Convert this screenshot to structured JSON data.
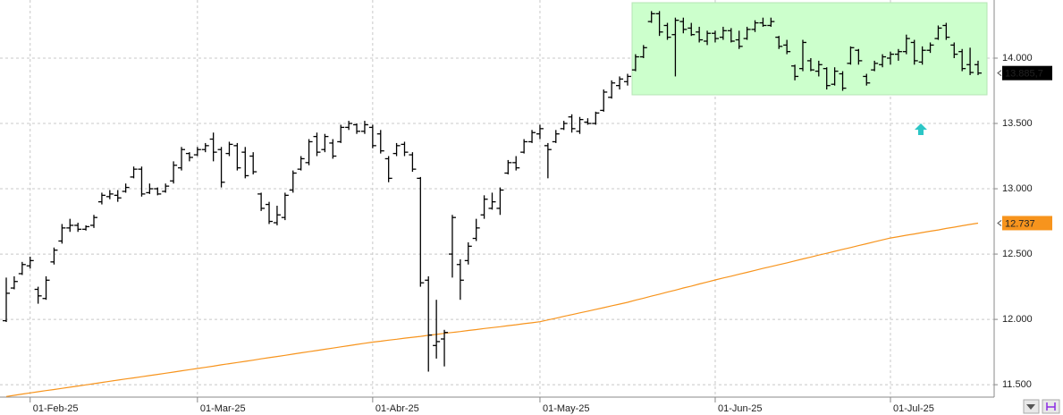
{
  "chart_data": {
    "type": "ohlc",
    "categories": [
      null,
      null,
      null,
      "01-Feb-25",
      null,
      null,
      null,
      null,
      null,
      null,
      null,
      null,
      null,
      null,
      null,
      null,
      null,
      null,
      null,
      null,
      null,
      null,
      null,
      null,
      "01-Mar-25",
      null,
      null,
      null,
      null,
      null,
      null,
      null,
      null,
      null,
      null,
      null,
      null,
      null,
      null,
      null,
      null,
      null,
      null,
      null,
      null,
      null,
      "01-Abr-25",
      null,
      null,
      null,
      null,
      null,
      null,
      null,
      null,
      null,
      null,
      null,
      null,
      null,
      null,
      null,
      null,
      null,
      null,
      null,
      null,
      "01-May-25",
      null,
      null,
      null,
      null,
      null,
      null,
      null,
      null,
      null,
      null,
      null,
      null,
      null,
      null,
      null,
      null,
      null,
      null,
      null,
      null,
      null,
      "01-Jun-25",
      null,
      null,
      null,
      null,
      null,
      null,
      null,
      null,
      null,
      null,
      null,
      null,
      null,
      null,
      null,
      null,
      null,
      null,
      null,
      null,
      null,
      "01-Jul-25",
      null,
      null,
      null,
      null,
      null,
      null,
      null,
      null,
      null,
      null,
      null
    ],
    "open": [
      11990,
      12240,
      12350,
      12410,
      12230,
      12160,
      12440,
      12600,
      12700,
      12720,
      12690,
      12720,
      12900,
      12940,
      12950,
      12980,
      13090,
      13150,
      12970,
      13000,
      12980,
      13060,
      13160,
      13270,
      13260,
      13300,
      13380,
      13300,
      13270,
      13330,
      13280,
      13250,
      12960,
      12880,
      12740,
      12780,
      12990,
      13150,
      13200,
      13400,
      13300,
      13350,
      13360,
      13470,
      13490,
      13440,
      13470,
      13420,
      13230,
      13270,
      13340,
      13260,
      13080,
      12300,
      11800,
      11850,
      12500,
      12420,
      12450,
      12620,
      12800,
      12850,
      12850,
      13120,
      13200,
      13280,
      13360,
      13420,
      13330,
      13360,
      13460,
      13550,
      13440,
      13510,
      13500,
      13600,
      13700,
      13790,
      13820,
      13910,
      14010,
      14280,
      14340,
      14250,
      14180,
      14280,
      14230,
      14200,
      14130,
      14190,
      14160,
      14210,
      14140,
      14150,
      14220,
      14270,
      14250,
      14160,
      14100,
      13940,
      13920,
      13980,
      13900,
      13920,
      13800,
      13880,
      13960,
      14060,
      13860,
      13910,
      13950,
      14000,
      14030,
      14050,
      14120,
      13970,
      14060,
      14150,
      14250,
      14100,
      14050,
      13950,
      13950
    ],
    "high": [
      12320,
      12330,
      12440,
      12480,
      12250,
      12330,
      12550,
      12730,
      12770,
      12740,
      12720,
      12800,
      12970,
      12990,
      12990,
      13040,
      13170,
      13170,
      13040,
      13010,
      13040,
      13210,
      13320,
      13280,
      13320,
      13350,
      13430,
      13320,
      13360,
      13350,
      13320,
      13280,
      12970,
      12900,
      12870,
      12970,
      13140,
      13250,
      13380,
      13430,
      13420,
      13380,
      13490,
      13520,
      13500,
      13520,
      13490,
      13450,
      13250,
      13350,
      13360,
      13280,
      13090,
      12330,
      12150,
      11920,
      12800,
      12460,
      12590,
      12770,
      12950,
      12970,
      13010,
      13220,
      13250,
      13380,
      13450,
      13490,
      13350,
      13450,
      13520,
      13570,
      13550,
      13540,
      13590,
      13760,
      13830,
      13860,
      13880,
      14030,
      14100,
      14360,
      14360,
      14270,
      14310,
      14310,
      14270,
      14240,
      14210,
      14210,
      14240,
      14230,
      14210,
      14240,
      14290,
      14310,
      14310,
      14170,
      14140,
      13950,
      14140,
      14000,
      13980,
      13930,
      13930,
      13900,
      14090,
      14070,
      13880,
      13980,
      14030,
      14050,
      14070,
      14180,
      14140,
      14090,
      14120,
      14250,
      14270,
      14120,
      14070,
      14080,
      13980
    ],
    "low": [
      11980,
      12230,
      12340,
      12390,
      12120,
      12150,
      12420,
      12580,
      12670,
      12670,
      12680,
      12700,
      12880,
      12920,
      12900,
      12970,
      13080,
      12940,
      12960,
      12950,
      12970,
      13040,
      13140,
      13210,
      13250,
      13280,
      13210,
      13010,
      13250,
      13140,
      13080,
      13110,
      12830,
      12730,
      12720,
      12760,
      12970,
      13140,
      13180,
      13250,
      13280,
      13230,
      13350,
      13450,
      13420,
      13420,
      13310,
      13270,
      13050,
      13250,
      13250,
      13130,
      12250,
      11600,
      11700,
      11640,
      12320,
      12150,
      12420,
      12600,
      12770,
      12840,
      12800,
      13110,
      13140,
      13270,
      13350,
      13380,
      13080,
      13350,
      13450,
      13430,
      13420,
      13490,
      13490,
      13590,
      13690,
      13760,
      13790,
      13900,
      14000,
      14270,
      14170,
      14140,
      13860,
      14190,
      14170,
      14120,
      14100,
      14120,
      14140,
      14120,
      14070,
      14140,
      14200,
      14240,
      14240,
      14070,
      14030,
      13830,
      13900,
      13900,
      13860,
      13760,
      13790,
      13750,
      13950,
      13950,
      13790,
      13900,
      13930,
      13950,
      13980,
      14030,
      13950,
      13950,
      14040,
      14140,
      14140,
      14000,
      13900,
      13870,
      13870
    ],
    "close": [
      12200,
      12290,
      12420,
      12450,
      12180,
      12300,
      12530,
      12700,
      12720,
      12690,
      12710,
      12780,
      12950,
      12960,
      12930,
      13010,
      13150,
      12960,
      13000,
      12960,
      13020,
      13180,
      13300,
      13240,
      13300,
      13330,
      13280,
      13050,
      13340,
      13160,
      13100,
      13130,
      12850,
      12750,
      12800,
      12950,
      13120,
      13230,
      13360,
      13280,
      13400,
      13250,
      13470,
      13500,
      13440,
      13490,
      13330,
      13290,
      13080,
      13330,
      13280,
      13150,
      12280,
      11880,
      11830,
      11900,
      12780,
      12300,
      12560,
      12700,
      12920,
      12900,
      12990,
      13200,
      13160,
      13360,
      13430,
      13460,
      13300,
      13420,
      13500,
      13460,
      13530,
      13500,
      13580,
      13740,
      13810,
      13840,
      13860,
      14010,
      14080,
      14340,
      14200,
      14160,
      14290,
      14220,
      14180,
      14140,
      14190,
      14150,
      14210,
      14130,
      14090,
      14220,
      14270,
      14250,
      14280,
      14090,
      14050,
      13860,
      14120,
      13910,
      13950,
      13790,
      13900,
      13770,
      14080,
      13980,
      13810,
      13960,
      14010,
      14030,
      14050,
      14150,
      13980,
      14060,
      14100,
      14230,
      14160,
      14030,
      13920,
      13890,
      13885.7
    ],
    "color": "#000000",
    "moving_average": {
      "color": "#f7941d",
      "values": [
        11410,
        11419,
        11428,
        11437,
        11446,
        11455,
        11463,
        11472,
        11481,
        11490,
        11499,
        11508,
        11517,
        11526,
        11535,
        11544,
        11552,
        11561,
        11570,
        11579,
        11588,
        11597,
        11606,
        11615,
        11624,
        11633,
        11642,
        11652,
        11661,
        11670,
        11679,
        11688,
        11698,
        11707,
        11716,
        11725,
        11734,
        11744,
        11753,
        11762,
        11771,
        11780,
        11790,
        11799,
        11808,
        11817,
        11826,
        11833,
        11841,
        11848,
        11856,
        11863,
        11870,
        11878,
        11885,
        11893,
        11900,
        11907,
        11915,
        11922,
        11930,
        11937,
        11944,
        11952,
        11959,
        11967,
        11974,
        11982,
        11996,
        12009,
        12023,
        12036,
        12050,
        12063,
        12077,
        12090,
        12104,
        12117,
        12131,
        12147,
        12162,
        12178,
        12193,
        12209,
        12224,
        12240,
        12255,
        12271,
        12286,
        12302,
        12317,
        12331,
        12346,
        12360,
        12375,
        12390,
        12404,
        12419,
        12433,
        12448,
        12463,
        12477,
        12492,
        12506,
        12521,
        12536,
        12550,
        12565,
        12579,
        12594,
        12609,
        12623,
        12633,
        12644,
        12654,
        12665,
        12675,
        12685,
        12696,
        12706,
        12717,
        12727,
        12737
      ]
    },
    "price_tags": [
      {
        "value": 13885.7,
        "label": "13.885,7",
        "color": "#000000"
      },
      {
        "value": 12737,
        "label": "12.737",
        "color": "#f7941d"
      }
    ],
    "ylim": [
      11405,
      14445
    ],
    "yticks": [
      {
        "value": 11500,
        "label": "11.500"
      },
      {
        "value": 12000,
        "label": "12.000"
      },
      {
        "value": 12500,
        "label": "12.500"
      },
      {
        "value": 13000,
        "label": "13.000"
      },
      {
        "value": 13500,
        "label": "13.500"
      },
      {
        "value": 14000,
        "label": "14.000"
      }
    ],
    "grid": true
  }
}
